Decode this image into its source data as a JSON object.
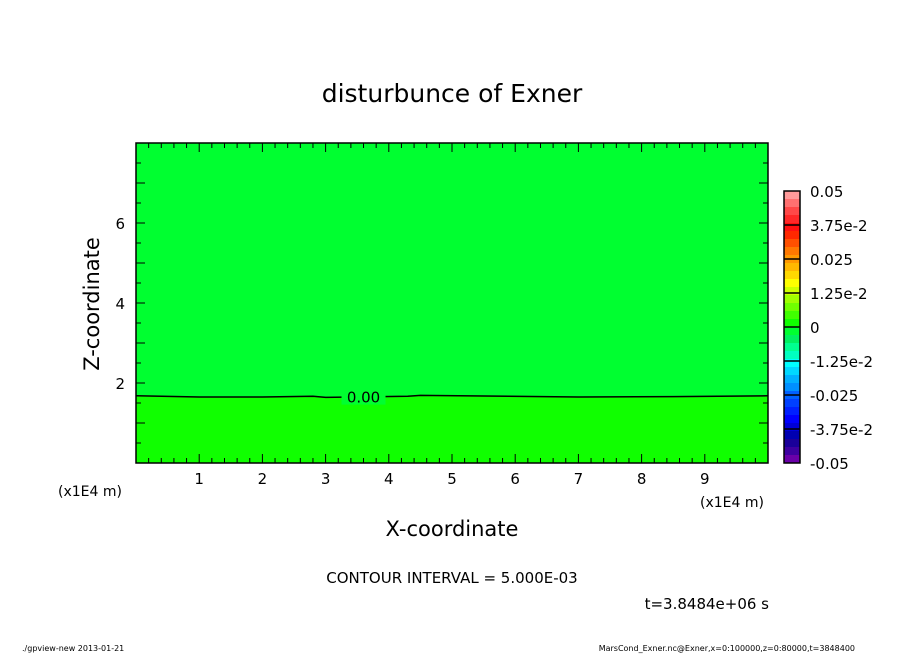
{
  "chart_data": {
    "type": "heatmap",
    "subtype": "contour",
    "title": "disturbunce of Exner",
    "xlabel": "X-coordinate",
    "ylabel": "Z-coordinate",
    "x_unit": "(x1E4 m)",
    "y_unit": "(x1E4 m)",
    "xlim": [
      0,
      10
    ],
    "ylim": [
      0,
      8
    ],
    "xticks": [
      1,
      2,
      3,
      4,
      5,
      6,
      7,
      8,
      9
    ],
    "yticks": [
      2,
      4,
      6
    ],
    "contour_interval_label": "CONTOUR INTERVAL = 5.000E-03",
    "time_label": "t=3.8484e+06 s",
    "contours": [
      {
        "level_label": "0.00",
        "x": [
          0,
          1,
          2,
          2.8,
          3,
          4.3,
          4.5,
          7,
          8.5,
          10
        ],
        "z": [
          1.68,
          1.65,
          1.65,
          1.67,
          1.64,
          1.67,
          1.69,
          1.65,
          1.66,
          1.68
        ]
      }
    ],
    "regions": [
      {
        "range": "0 to 0.005",
        "where": "below contour",
        "color": "#10ff00"
      },
      {
        "range": "-0.005 to 0",
        "where": "above contour",
        "color": "#00ff30"
      }
    ],
    "colorbar": {
      "min": -0.05,
      "max": 0.05,
      "step": 0.005,
      "labels": [
        "0.05",
        "3.75e-2",
        "0.025",
        "1.25e-2",
        "0",
        "-1.25e-2",
        "-0.025",
        "-3.75e-2",
        "-0.05"
      ],
      "colors_top_to_bottom": [
        "#ff9a9a",
        "#ff7070",
        "#ff4848",
        "#ff2828",
        "#ff1010",
        "#ff2800",
        "#ff5000",
        "#ff7800",
        "#ff9800",
        "#ffb800",
        "#ffd800",
        "#ffff00",
        "#d0ff00",
        "#a0ff00",
        "#70ff00",
        "#40ff00",
        "#10ff00",
        "#00ff30",
        "#00f060",
        "#00ff90",
        "#00ffc0",
        "#00ffff",
        "#00d8ff",
        "#00b0ff",
        "#0090ff",
        "#0060ff",
        "#0040ff",
        "#0020ff",
        "#0000ff",
        "#0000d8",
        "#0000b0",
        "#1a0099",
        "#3d00a0",
        "#6a00a8"
      ]
    }
  },
  "footer": {
    "left": "./gpview-new  2013-01-21",
    "right": "MarsCond_Exner.nc@Exner,x=0:100000,z=0:80000,t=3848400"
  }
}
